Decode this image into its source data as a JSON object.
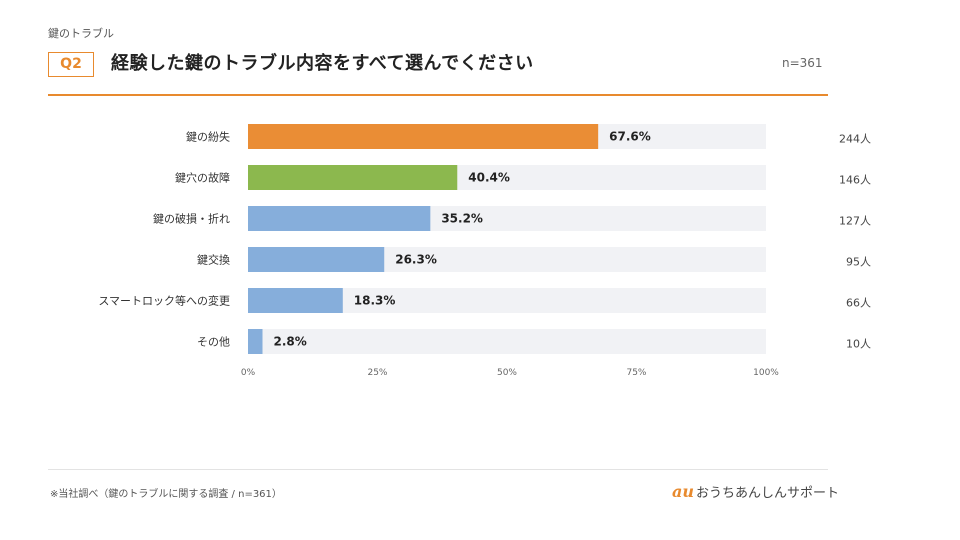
{
  "header": {
    "category": "鍵のトラブル",
    "q_label": "Q2",
    "question": "経験した鍵のトラブル内容をすべて選んでください",
    "n_total": "n=361"
  },
  "footer": {
    "note": "※当社調べ（鍵のトラブルに関する調査 / n=361）",
    "brand_mark": "au",
    "brand_text": "おうちあんしんサポート"
  },
  "colors": {
    "accent": "#e88a2e",
    "bar_first": "#ea8d35",
    "bar_second": "#8cb84e",
    "bar_rest": "#86aedb",
    "track": "#f1f2f5"
  },
  "chart_data": {
    "type": "bar",
    "orientation": "horizontal",
    "categories": [
      "鍵の紛失",
      "鍵穴の故障",
      "鍵の破損・折れ",
      "鍵交換",
      "スマートロック等への変更",
      "その他"
    ],
    "values": [
      67.6,
      40.4,
      35.2,
      26.3,
      18.3,
      2.8
    ],
    "value_labels": [
      "67.6%",
      "40.4%",
      "35.2%",
      "26.3%",
      "18.3%",
      "2.8%"
    ],
    "counts": [
      "244人",
      "146人",
      "127人",
      "95人",
      "66人",
      "10人"
    ],
    "xlim": [
      0,
      100
    ],
    "xticks": [
      0,
      25,
      50,
      75,
      100
    ],
    "xtick_labels": [
      "0%",
      "25%",
      "50%",
      "75%",
      "100%"
    ],
    "grid": false,
    "legend": "none"
  }
}
